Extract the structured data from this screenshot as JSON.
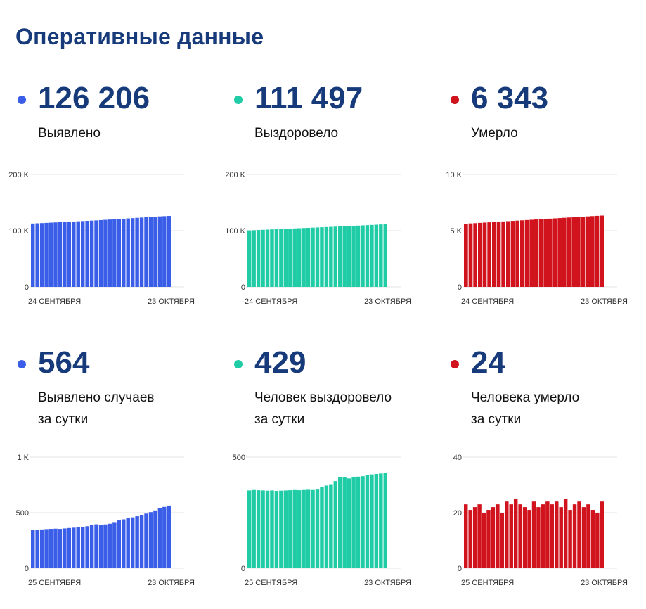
{
  "title": "Оперативные данные",
  "chart_data": [
    {
      "type": "bar",
      "value": "126 206",
      "label": "Выявлено",
      "color": "#3b5ee8",
      "yticks": [
        "200 K",
        "100 K",
        "0"
      ],
      "ylim": [
        0,
        200000
      ],
      "xstart": "24 СЕНТЯБРЯ",
      "xend": "23 ОКТЯБРЯ",
      "values": [
        112700,
        113100,
        113500,
        113900,
        114300,
        114700,
        115100,
        115500,
        115900,
        116300,
        116700,
        117100,
        117500,
        117900,
        118300,
        118800,
        119300,
        119800,
        120300,
        120800,
        121300,
        121800,
        122300,
        122800,
        123300,
        123800,
        124300,
        124800,
        125400,
        125800,
        126206
      ]
    },
    {
      "type": "bar",
      "value": "111 497",
      "label": "Выздоровело",
      "color": "#1fcca6",
      "yticks": [
        "200 K",
        "100 K",
        "0"
      ],
      "ylim": [
        0,
        200000
      ],
      "xstart": "24 СЕНТЯБРЯ",
      "xend": "23 ОКТЯБРЯ",
      "values": [
        100500,
        100850,
        101200,
        101550,
        101900,
        102250,
        102600,
        102950,
        103300,
        103650,
        104000,
        104350,
        104700,
        105050,
        105400,
        105750,
        106100,
        106450,
        106800,
        107150,
        107500,
        107850,
        108200,
        108600,
        109000,
        109400,
        109800,
        110200,
        110600,
        111068,
        111497
      ]
    },
    {
      "type": "bar",
      "value": "6 343",
      "label": "Умерло",
      "color": "#d0131c",
      "yticks": [
        "10 K",
        "5 K",
        "0"
      ],
      "ylim": [
        0,
        10000
      ],
      "xstart": "24 СЕНТЯБРЯ",
      "xend": "23 ОКТЯБРЯ",
      "values": [
        5620,
        5645,
        5670,
        5695,
        5720,
        5745,
        5770,
        5795,
        5820,
        5845,
        5870,
        5895,
        5920,
        5945,
        5970,
        5995,
        6020,
        6045,
        6070,
        6095,
        6120,
        6145,
        6170,
        6195,
        6220,
        6245,
        6270,
        6295,
        6319,
        6343
      ]
    },
    {
      "type": "bar",
      "value": "564",
      "label": "Выявлено случаев\nза сутки",
      "color": "#3b5ee8",
      "yticks": [
        "1 K",
        "500",
        "0"
      ],
      "ylim": [
        0,
        1000
      ],
      "xstart": "25 СЕНТЯБРЯ",
      "xend": "23 ОКТЯБРЯ",
      "values": [
        345,
        347,
        349,
        352,
        354,
        356,
        354,
        358,
        362,
        365,
        368,
        372,
        378,
        388,
        395,
        390,
        394,
        400,
        415,
        430,
        440,
        450,
        458,
        468,
        480,
        492,
        505,
        520,
        540,
        552,
        564
      ]
    },
    {
      "type": "bar",
      "value": "429",
      "label": "Человек выздоровело\nза сутки",
      "color": "#1fcca6",
      "yticks": [
        "500",
        "0"
      ],
      "ylim": [
        0,
        500
      ],
      "xstart": "25 СЕНТЯБРЯ",
      "xend": "23 ОКТЯБРЯ",
      "values": [
        350,
        352,
        351,
        350,
        349,
        350,
        348,
        349,
        350,
        351,
        352,
        351,
        352,
        353,
        352,
        354,
        366,
        372,
        378,
        392,
        410,
        408,
        404,
        410,
        412,
        414,
        420,
        422,
        424,
        426,
        429
      ]
    },
    {
      "type": "bar",
      "value": "24",
      "label": "Человека умерло\nза сутки",
      "color": "#d0131c",
      "yticks": [
        "40",
        "20",
        "0"
      ],
      "ylim": [
        0,
        40
      ],
      "xstart": "25 СЕНТЯБРЯ",
      "xend": "23 ОКТЯБРЯ",
      "values": [
        23,
        21,
        22,
        23,
        20,
        21,
        22,
        23,
        20,
        24,
        23,
        25,
        23,
        22,
        21,
        24,
        22,
        23,
        24,
        23,
        24,
        22,
        25,
        21,
        23,
        24,
        22,
        23,
        21,
        20,
        24
      ]
    }
  ]
}
